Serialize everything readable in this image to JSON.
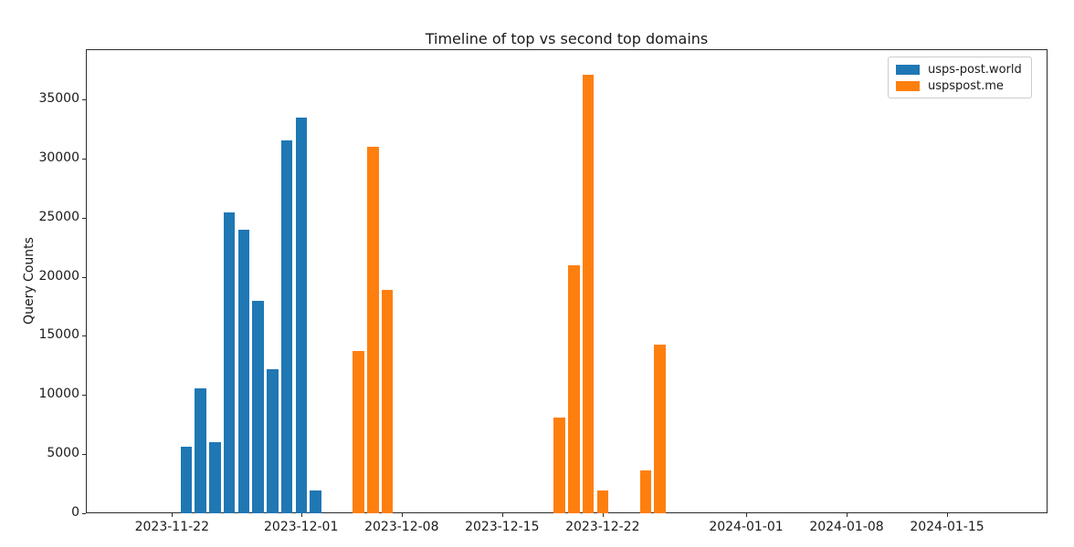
{
  "chart_data": {
    "type": "bar",
    "title": "Timeline of top vs second top domains",
    "xlabel": "",
    "ylabel": "Query Counts",
    "xlim": [
      "2023-11-16",
      "2024-01-22"
    ],
    "ylim": [
      0,
      39230
    ],
    "bar_width_days": 0.8,
    "grid": false,
    "x_ticks": [
      {
        "date": "2023-11-22",
        "label": "2023-11-22"
      },
      {
        "date": "2023-12-01",
        "label": "2023-12-01"
      },
      {
        "date": "2023-12-08",
        "label": "2023-12-08"
      },
      {
        "date": "2023-12-15",
        "label": "2023-12-15"
      },
      {
        "date": "2023-12-22",
        "label": "2023-12-22"
      },
      {
        "date": "2024-01-01",
        "label": "2024-01-01"
      },
      {
        "date": "2024-01-08",
        "label": "2024-01-08"
      },
      {
        "date": "2024-01-15",
        "label": "2024-01-15"
      }
    ],
    "y_ticks": [
      {
        "value": 0,
        "label": "0"
      },
      {
        "value": 5000,
        "label": "5000"
      },
      {
        "value": 10000,
        "label": "10000"
      },
      {
        "value": 15000,
        "label": "15000"
      },
      {
        "value": 20000,
        "label": "20000"
      },
      {
        "value": 25000,
        "label": "25000"
      },
      {
        "value": 30000,
        "label": "30000"
      },
      {
        "value": 35000,
        "label": "35000"
      }
    ],
    "legend": {
      "position": "upper right",
      "entries": [
        {
          "label": "usps-post.world",
          "color": "#1f77b4"
        },
        {
          "label": "uspspost.me",
          "color": "#ff7f0e"
        }
      ]
    },
    "series": [
      {
        "name": "usps-post.world",
        "color": "#1f77b4",
        "points": [
          {
            "date": "2023-11-23",
            "value": 5600
          },
          {
            "date": "2023-11-24",
            "value": 10600
          },
          {
            "date": "2023-11-25",
            "value": 6000
          },
          {
            "date": "2023-11-26",
            "value": 25400
          },
          {
            "date": "2023-11-27",
            "value": 24000
          },
          {
            "date": "2023-11-28",
            "value": 18000
          },
          {
            "date": "2023-11-29",
            "value": 12200
          },
          {
            "date": "2023-11-30",
            "value": 31550
          },
          {
            "date": "2023-12-01",
            "value": 33450
          },
          {
            "date": "2023-12-02",
            "value": 1900
          }
        ]
      },
      {
        "name": "uspspost.me",
        "color": "#ff7f0e",
        "points": [
          {
            "date": "2023-12-05",
            "value": 13700
          },
          {
            "date": "2023-12-06",
            "value": 31000
          },
          {
            "date": "2023-12-07",
            "value": 18900
          },
          {
            "date": "2023-12-19",
            "value": 8100
          },
          {
            "date": "2023-12-20",
            "value": 20950
          },
          {
            "date": "2023-12-21",
            "value": 37050
          },
          {
            "date": "2023-12-22",
            "value": 1950
          },
          {
            "date": "2023-12-25",
            "value": 3600
          },
          {
            "date": "2023-12-26",
            "value": 14250
          }
        ]
      }
    ]
  }
}
